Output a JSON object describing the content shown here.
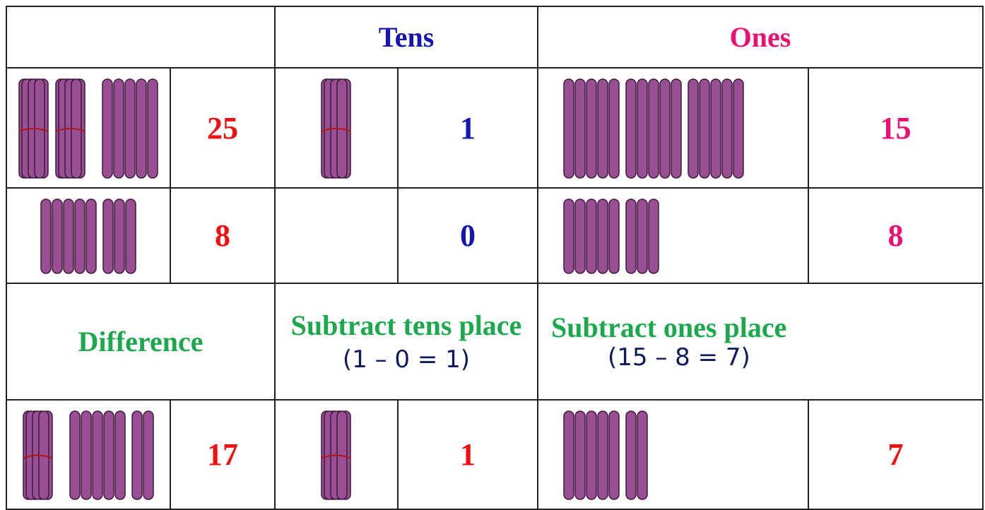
{
  "table": {
    "header": [
      "Tens",
      "Ones"
    ],
    "rows": [
      [
        25,
        1,
        15
      ],
      [
        8,
        0,
        8
      ]
    ],
    "steps": {
      "difference": "Difference",
      "tens": {
        "label": "Subtract tens place",
        "expr": "(1 – 0 = 1)"
      },
      "ones": {
        "label": "Subtract ones place",
        "expr": "(15 – 8 = 7)"
      }
    },
    "result": [
      17,
      1,
      7
    ]
  }
}
